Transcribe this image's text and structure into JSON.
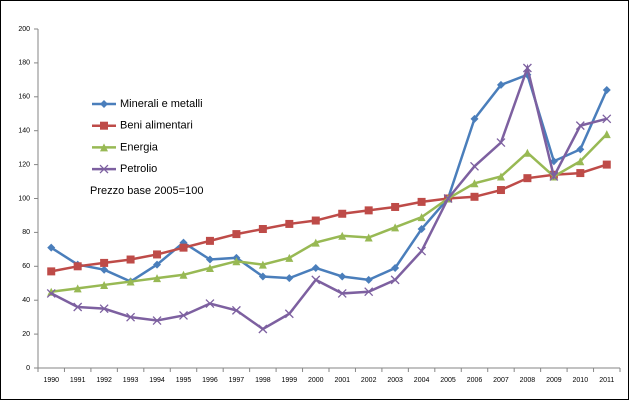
{
  "chart_data": {
    "type": "line",
    "annotation": "Prezzo base 2005=100",
    "categories": [
      "1990",
      "1991",
      "1992",
      "1993",
      "1994",
      "1995",
      "1996",
      "1997",
      "1998",
      "1999",
      "2000",
      "2001",
      "2002",
      "2003",
      "2004",
      "2005",
      "2006",
      "2007",
      "2008",
      "2009",
      "2010",
      "2011"
    ],
    "series": [
      {
        "name": "Minerali e metalli",
        "color": "#4a7ebb",
        "marker": "diamond",
        "values": [
          71,
          61,
          58,
          51,
          61,
          74,
          64,
          65,
          54,
          53,
          59,
          54,
          52,
          59,
          82,
          100,
          147,
          167,
          173,
          122,
          129,
          164
        ]
      },
      {
        "name": "Beni alimentari",
        "color": "#be4b48",
        "marker": "square",
        "values": [
          57,
          60,
          62,
          64,
          67,
          71,
          75,
          79,
          82,
          85,
          87,
          91,
          93,
          95,
          98,
          100,
          101,
          105,
          112,
          114,
          115,
          120
        ]
      },
      {
        "name": "Energia",
        "color": "#98b954",
        "marker": "triangle",
        "values": [
          45,
          47,
          49,
          51,
          53,
          55,
          59,
          63,
          61,
          65,
          74,
          78,
          77,
          83,
          89,
          100,
          109,
          113,
          127,
          113,
          122,
          138
        ]
      },
      {
        "name": "Petrolio",
        "color": "#7d60a0",
        "marker": "x",
        "values": [
          44,
          36,
          35,
          30,
          28,
          31,
          38,
          34,
          23,
          32,
          52,
          44,
          45,
          52,
          69,
          100,
          119,
          133,
          177,
          113,
          143,
          147
        ]
      }
    ],
    "ylim": [
      0,
      200
    ],
    "yticks": [
      0,
      20,
      40,
      60,
      80,
      100,
      120,
      140,
      160,
      180,
      200
    ],
    "grid": false
  }
}
